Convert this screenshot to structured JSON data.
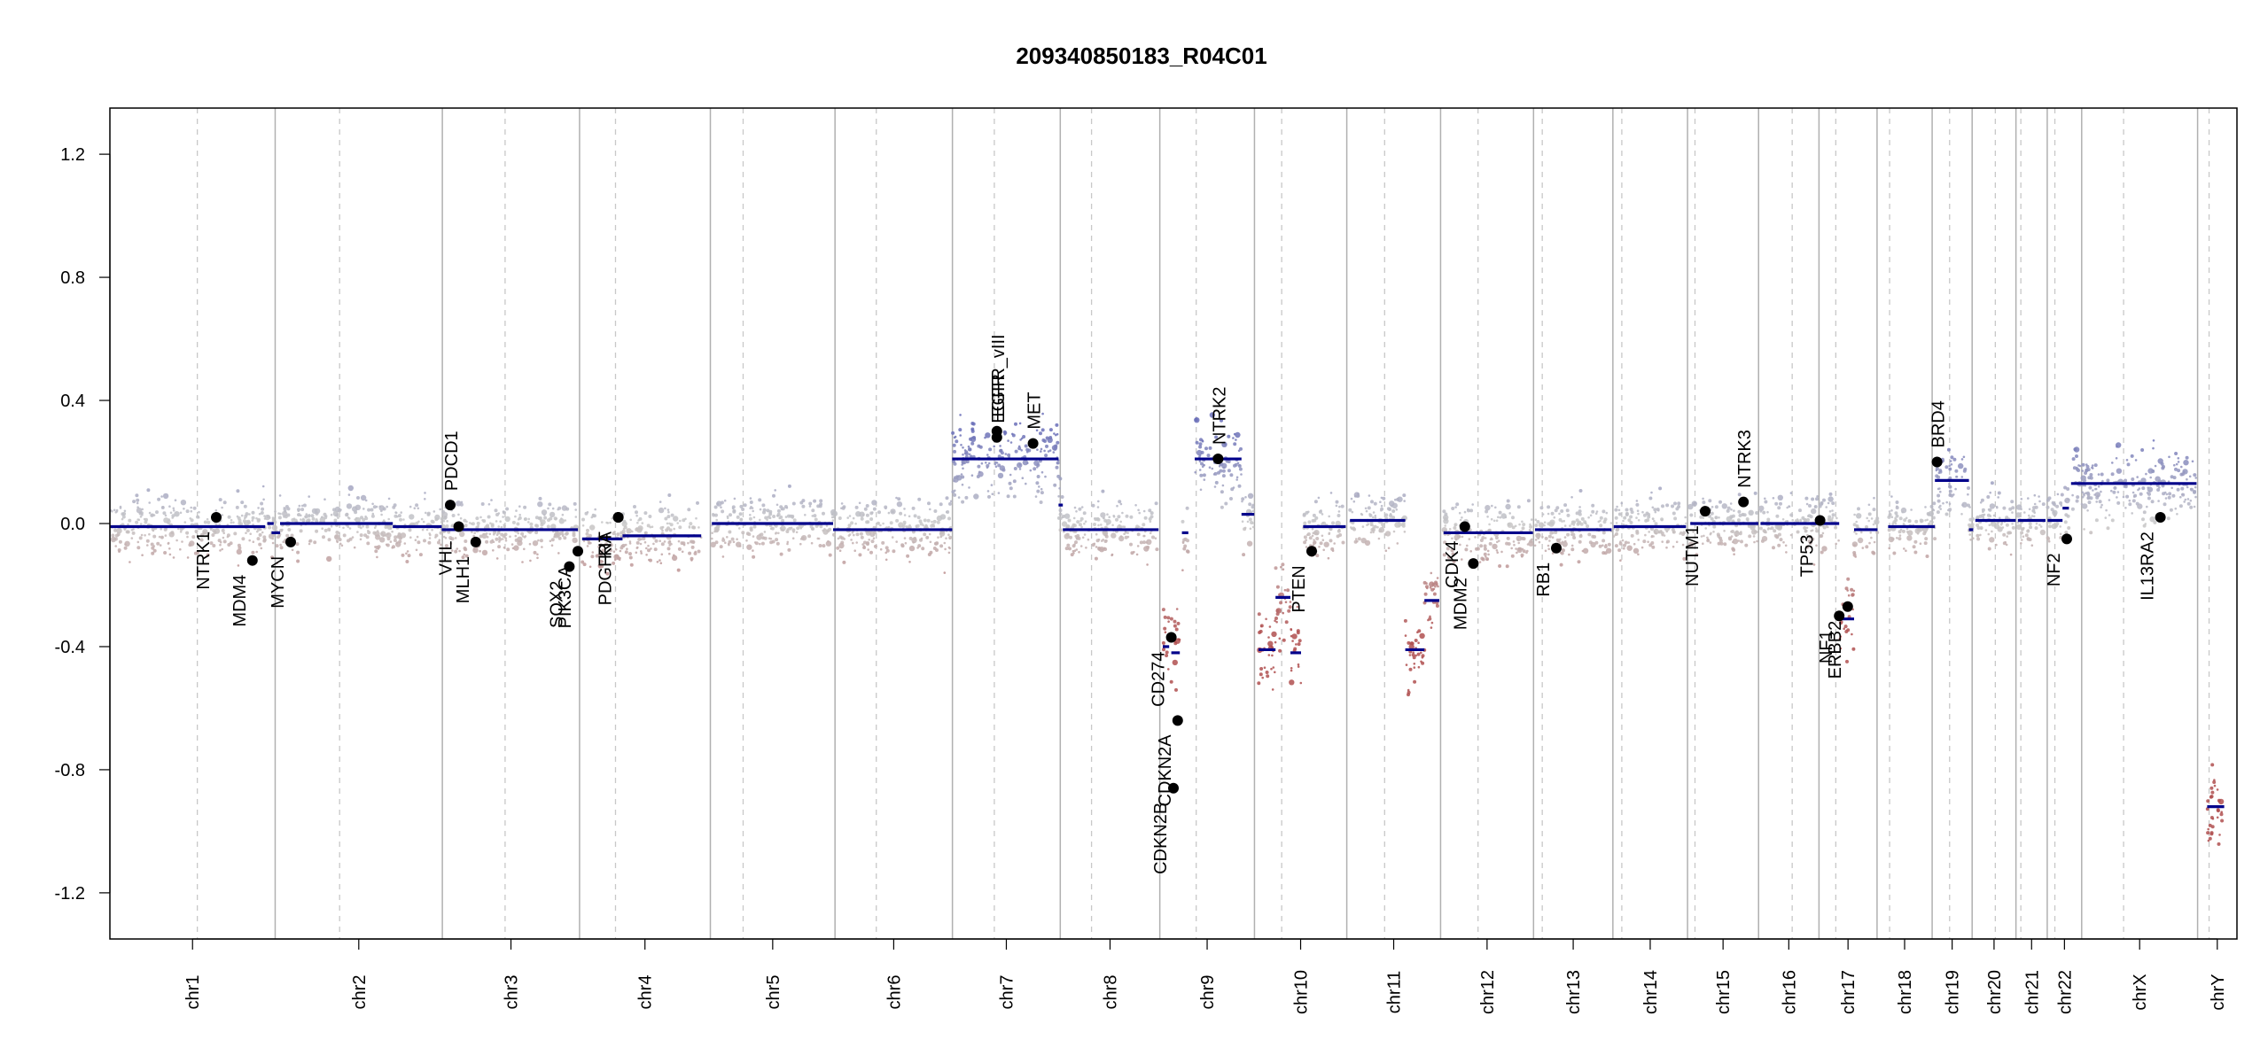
{
  "chart_data": {
    "type": "scatter",
    "title": "209340850183_R04C01",
    "ylim": [
      -1.35,
      1.35
    ],
    "y_ticks": [
      "1.2",
      "0.8",
      "0.4",
      "0.0",
      "-0.4",
      "-0.8",
      "-1.2"
    ],
    "y_tick_values": [
      1.2,
      0.8,
      0.4,
      0.0,
      -0.4,
      -0.8,
      -1.2
    ],
    "grid": false,
    "colors": {
      "gain": "#6a6fb8",
      "loss": "#b05050",
      "neutral": "#c8c8c8",
      "segment": "#00008b",
      "gene_point": "#000000",
      "chrom_boundary": "#b0b0b0",
      "centromere": "#c8c8c8"
    },
    "chromosomes": [
      {
        "name": "chr1",
        "start": 0.0,
        "end": 0.0777,
        "centromere": 0.0411
      },
      {
        "name": "chr2",
        "start": 0.0777,
        "end": 0.1563,
        "centromere": 0.108
      },
      {
        "name": "chr3",
        "start": 0.1563,
        "end": 0.2208,
        "centromere": 0.1858
      },
      {
        "name": "chr4",
        "start": 0.2208,
        "end": 0.2823,
        "centromere": 0.2377
      },
      {
        "name": "chr5",
        "start": 0.2823,
        "end": 0.3409,
        "centromere": 0.2977
      },
      {
        "name": "chr6",
        "start": 0.3409,
        "end": 0.3961,
        "centromere": 0.3603
      },
      {
        "name": "chr7",
        "start": 0.3961,
        "end": 0.4468,
        "centromere": 0.4158
      },
      {
        "name": "chr8",
        "start": 0.4468,
        "end": 0.4936,
        "centromere": 0.4615
      },
      {
        "name": "chr9",
        "start": 0.4936,
        "end": 0.5381,
        "centromere": 0.5107
      },
      {
        "name": "chr10",
        "start": 0.5381,
        "end": 0.5815,
        "centromere": 0.5509
      },
      {
        "name": "chr11",
        "start": 0.5815,
        "end": 0.6256,
        "centromere": 0.5993
      },
      {
        "name": "chr12",
        "start": 0.6256,
        "end": 0.6693,
        "centromere": 0.6432
      },
      {
        "name": "chr13",
        "start": 0.6693,
        "end": 0.7066,
        "centromere": 0.6734
      },
      {
        "name": "chr14",
        "start": 0.7066,
        "end": 0.7417,
        "centromere": 0.7108
      },
      {
        "name": "chr15",
        "start": 0.7417,
        "end": 0.7751,
        "centromere": 0.7452
      },
      {
        "name": "chr16",
        "start": 0.7751,
        "end": 0.8035,
        "centromere": 0.7909
      },
      {
        "name": "chr17",
        "start": 0.8035,
        "end": 0.8308,
        "centromere": 0.8114
      },
      {
        "name": "chr18",
        "start": 0.8308,
        "end": 0.8567,
        "centromere": 0.8367
      },
      {
        "name": "chr19",
        "start": 0.8567,
        "end": 0.8755,
        "centromere": 0.8649
      },
      {
        "name": "chr20",
        "start": 0.8755,
        "end": 0.8961,
        "centromere": 0.8864
      },
      {
        "name": "chr21",
        "start": 0.8961,
        "end": 0.9108,
        "centromere": 0.8984
      },
      {
        "name": "chr22",
        "start": 0.9108,
        "end": 0.927,
        "centromere": 0.9144
      },
      {
        "name": "chrX",
        "start": 0.927,
        "end": 0.9815,
        "centromere": 0.9467
      },
      {
        "name": "chrY",
        "start": 0.9815,
        "end": 1.0,
        "centromere": 0.9869
      }
    ],
    "segments": [
      {
        "x0": 0.0,
        "x1": 0.073,
        "y": -0.01
      },
      {
        "x0": 0.074,
        "x1": 0.077,
        "y": 0.0
      },
      {
        "x0": 0.076,
        "x1": 0.08,
        "y": -0.03
      },
      {
        "x0": 0.08,
        "x1": 0.133,
        "y": 0.0
      },
      {
        "x0": 0.133,
        "x1": 0.156,
        "y": -0.01
      },
      {
        "x0": 0.156,
        "x1": 0.22,
        "y": -0.02
      },
      {
        "x0": 0.222,
        "x1": 0.241,
        "y": -0.05
      },
      {
        "x0": 0.241,
        "x1": 0.278,
        "y": -0.04
      },
      {
        "x0": 0.283,
        "x1": 0.34,
        "y": 0.0
      },
      {
        "x0": 0.34,
        "x1": 0.396,
        "y": -0.02
      },
      {
        "x0": 0.396,
        "x1": 0.446,
        "y": 0.21
      },
      {
        "x0": 0.446,
        "x1": 0.448,
        "y": 0.06
      },
      {
        "x0": 0.448,
        "x1": 0.493,
        "y": -0.02
      },
      {
        "x0": 0.495,
        "x1": 0.498,
        "y": -0.4
      },
      {
        "x0": 0.499,
        "x1": 0.503,
        "y": -0.42
      },
      {
        "x0": 0.504,
        "x1": 0.507,
        "y": -0.03
      },
      {
        "x0": 0.51,
        "x1": 0.532,
        "y": 0.21
      },
      {
        "x0": 0.532,
        "x1": 0.538,
        "y": 0.03
      },
      {
        "x0": 0.54,
        "x1": 0.548,
        "y": -0.41
      },
      {
        "x0": 0.548,
        "x1": 0.555,
        "y": -0.24
      },
      {
        "x0": 0.555,
        "x1": 0.56,
        "y": -0.42
      },
      {
        "x0": 0.561,
        "x1": 0.581,
        "y": -0.01
      },
      {
        "x0": 0.583,
        "x1": 0.609,
        "y": 0.01
      },
      {
        "x0": 0.609,
        "x1": 0.618,
        "y": -0.41
      },
      {
        "x0": 0.618,
        "x1": 0.625,
        "y": -0.25
      },
      {
        "x0": 0.627,
        "x1": 0.669,
        "y": -0.03
      },
      {
        "x0": 0.67,
        "x1": 0.706,
        "y": -0.02
      },
      {
        "x0": 0.707,
        "x1": 0.741,
        "y": -0.01
      },
      {
        "x0": 0.743,
        "x1": 0.775,
        "y": 0.0
      },
      {
        "x0": 0.776,
        "x1": 0.803,
        "y": 0.0
      },
      {
        "x0": 0.804,
        "x1": 0.813,
        "y": 0.0
      },
      {
        "x0": 0.813,
        "x1": 0.82,
        "y": -0.31
      },
      {
        "x0": 0.82,
        "x1": 0.831,
        "y": -0.02
      },
      {
        "x0": 0.836,
        "x1": 0.858,
        "y": -0.01
      },
      {
        "x0": 0.858,
        "x1": 0.874,
        "y": 0.14
      },
      {
        "x0": 0.874,
        "x1": 0.876,
        "y": -0.02
      },
      {
        "x0": 0.877,
        "x1": 0.896,
        "y": 0.01
      },
      {
        "x0": 0.897,
        "x1": 0.91,
        "y": 0.01
      },
      {
        "x0": 0.911,
        "x1": 0.918,
        "y": 0.01
      },
      {
        "x0": 0.918,
        "x1": 0.921,
        "y": 0.05
      },
      {
        "x0": 0.922,
        "x1": 0.981,
        "y": 0.13
      },
      {
        "x0": 0.986,
        "x1": 0.994,
        "y": -0.92
      }
    ],
    "genes": [
      {
        "name": "NTRK1",
        "x": 0.05,
        "y": 0.02
      },
      {
        "name": "MDM4",
        "x": 0.067,
        "y": -0.12
      },
      {
        "name": "MYCN",
        "x": 0.085,
        "y": -0.06
      },
      {
        "name": "PDCD1",
        "x": 0.16,
        "y": 0.06
      },
      {
        "name": "VHL",
        "x": 0.164,
        "y": -0.01
      },
      {
        "name": "MLH1",
        "x": 0.172,
        "y": -0.06
      },
      {
        "name": "SOX2",
        "x": 0.216,
        "y": -0.14
      },
      {
        "name": "PIK3CA",
        "x": 0.22,
        "y": -0.09
      },
      {
        "name": "PDGFRA",
        "x": 0.239,
        "y": 0.02
      },
      {
        "name": "KIT",
        "x": 0.239,
        "y": 0.02
      },
      {
        "name": "EGFR",
        "x": 0.417,
        "y": 0.28
      },
      {
        "name": "EGFR_vIII",
        "x": 0.417,
        "y": 0.3
      },
      {
        "name": "MET",
        "x": 0.434,
        "y": 0.26
      },
      {
        "name": "CD274",
        "x": 0.499,
        "y": -0.37
      },
      {
        "name": "CDKN2A",
        "x": 0.502,
        "y": -0.64
      },
      {
        "name": "CDKN2B",
        "x": 0.5,
        "y": -0.86
      },
      {
        "name": "NTRK2",
        "x": 0.521,
        "y": 0.21
      },
      {
        "name": "PTEN",
        "x": 0.565,
        "y": -0.09
      },
      {
        "name": "CDK4",
        "x": 0.637,
        "y": -0.01
      },
      {
        "name": "MDM2",
        "x": 0.641,
        "y": -0.13
      },
      {
        "name": "RB1",
        "x": 0.68,
        "y": -0.08
      },
      {
        "name": "NUTM1",
        "x": 0.75,
        "y": 0.04
      },
      {
        "name": "NTRK3",
        "x": 0.768,
        "y": 0.07
      },
      {
        "name": "TP53",
        "x": 0.804,
        "y": 0.01
      },
      {
        "name": "NF1",
        "x": 0.813,
        "y": -0.3
      },
      {
        "name": "ERBB2",
        "x": 0.817,
        "y": -0.27
      },
      {
        "name": "BRD4",
        "x": 0.859,
        "y": 0.2
      },
      {
        "name": "NF2",
        "x": 0.92,
        "y": -0.05
      },
      {
        "name": "IL13RA2",
        "x": 0.964,
        "y": 0.02
      }
    ]
  }
}
